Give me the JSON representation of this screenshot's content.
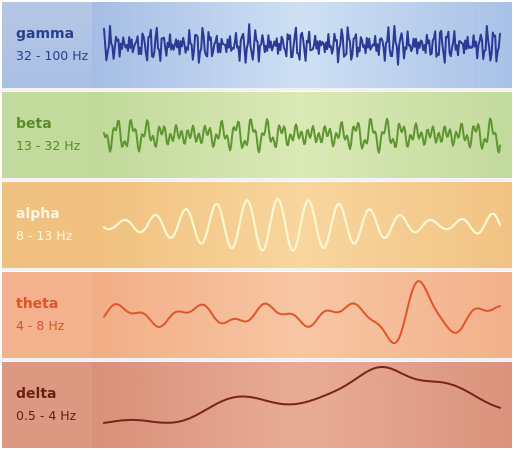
{
  "bands": [
    {
      "id": "gamma",
      "name": "gamma",
      "range": "32 - 100 Hz",
      "label_color": "#2b3f8f",
      "wave_color": "#2c3a96"
    },
    {
      "id": "beta",
      "name": "beta",
      "range": "13 - 32 Hz",
      "label_color": "#5a8a2a",
      "wave_color": "#5f9630"
    },
    {
      "id": "alpha",
      "name": "alpha",
      "range": "8 - 13 Hz",
      "label_color": "#fff6dc",
      "wave_color": "#fff7d0"
    },
    {
      "id": "theta",
      "name": "theta",
      "range": "4 - 8 Hz",
      "label_color": "#e0522a",
      "wave_color": "#e2552c"
    },
    {
      "id": "delta",
      "name": "delta",
      "range": "0.5 - 4 Hz",
      "label_color": "#6a1d14",
      "wave_color": "#7a2418"
    }
  ]
}
